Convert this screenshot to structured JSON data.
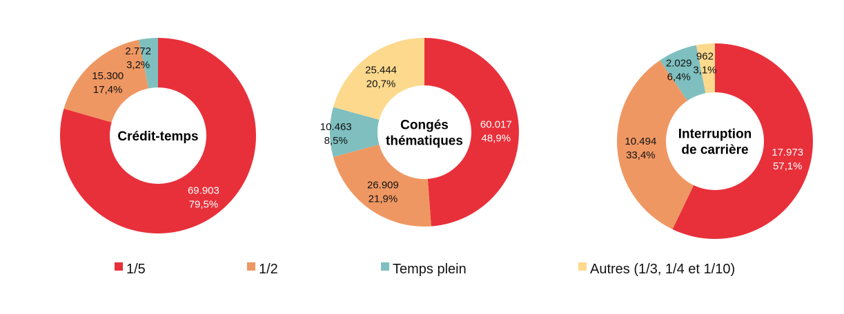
{
  "legend": {
    "items": [
      {
        "label": "1/5",
        "color": "#e8303a"
      },
      {
        "label": "1/2",
        "color": "#ef9762"
      },
      {
        "label": "Temps plein",
        "color": "#7fbfbf"
      },
      {
        "label": "Autres (1/3, 1/4 et 1/10)",
        "color": "#fdd98e"
      }
    ]
  },
  "chart_data": [
    {
      "type": "pie",
      "title": "Crédit-temps",
      "slices": [
        {
          "category": "1/5",
          "value_label": "69.903",
          "percent_label": "79,5%",
          "value": 69903,
          "percent": 79.5
        },
        {
          "category": "1/2",
          "value_label": "15.300",
          "percent_label": "17,4%",
          "value": 15300,
          "percent": 17.4
        },
        {
          "category": "Temps plein",
          "value_label": "2.772",
          "percent_label": "3,2%",
          "value": 2772,
          "percent": 3.2
        }
      ]
    },
    {
      "type": "pie",
      "title": "Congés thématiques",
      "slices": [
        {
          "category": "1/5",
          "value_label": "60.017",
          "percent_label": "48,9%",
          "value": 60017,
          "percent": 48.9
        },
        {
          "category": "1/2",
          "value_label": "26.909",
          "percent_label": "21,9%",
          "value": 26909,
          "percent": 21.9
        },
        {
          "category": "Temps plein",
          "value_label": "10.463",
          "percent_label": "8,5%",
          "value": 10463,
          "percent": 8.5
        },
        {
          "category": "Autres (1/3, 1/4 et 1/10)",
          "value_label": "25.444",
          "percent_label": "20,7%",
          "value": 25444,
          "percent": 20.7
        }
      ]
    },
    {
      "type": "pie",
      "title": "Interruption de carrière",
      "slices": [
        {
          "category": "1/5",
          "value_label": "17.973",
          "percent_label": "57,1%",
          "value": 17973,
          "percent": 57.1
        },
        {
          "category": "1/2",
          "value_label": "10.494",
          "percent_label": "33,4%",
          "value": 10494,
          "percent": 33.4
        },
        {
          "category": "Temps plein",
          "value_label": "2.029",
          "percent_label": "6,4%",
          "value": 2029,
          "percent": 6.4
        },
        {
          "category": "Autres (1/3, 1/4 et 1/10)",
          "value_label": "962",
          "percent_label": "3,1%",
          "value": 962,
          "percent": 3.1
        }
      ]
    }
  ]
}
